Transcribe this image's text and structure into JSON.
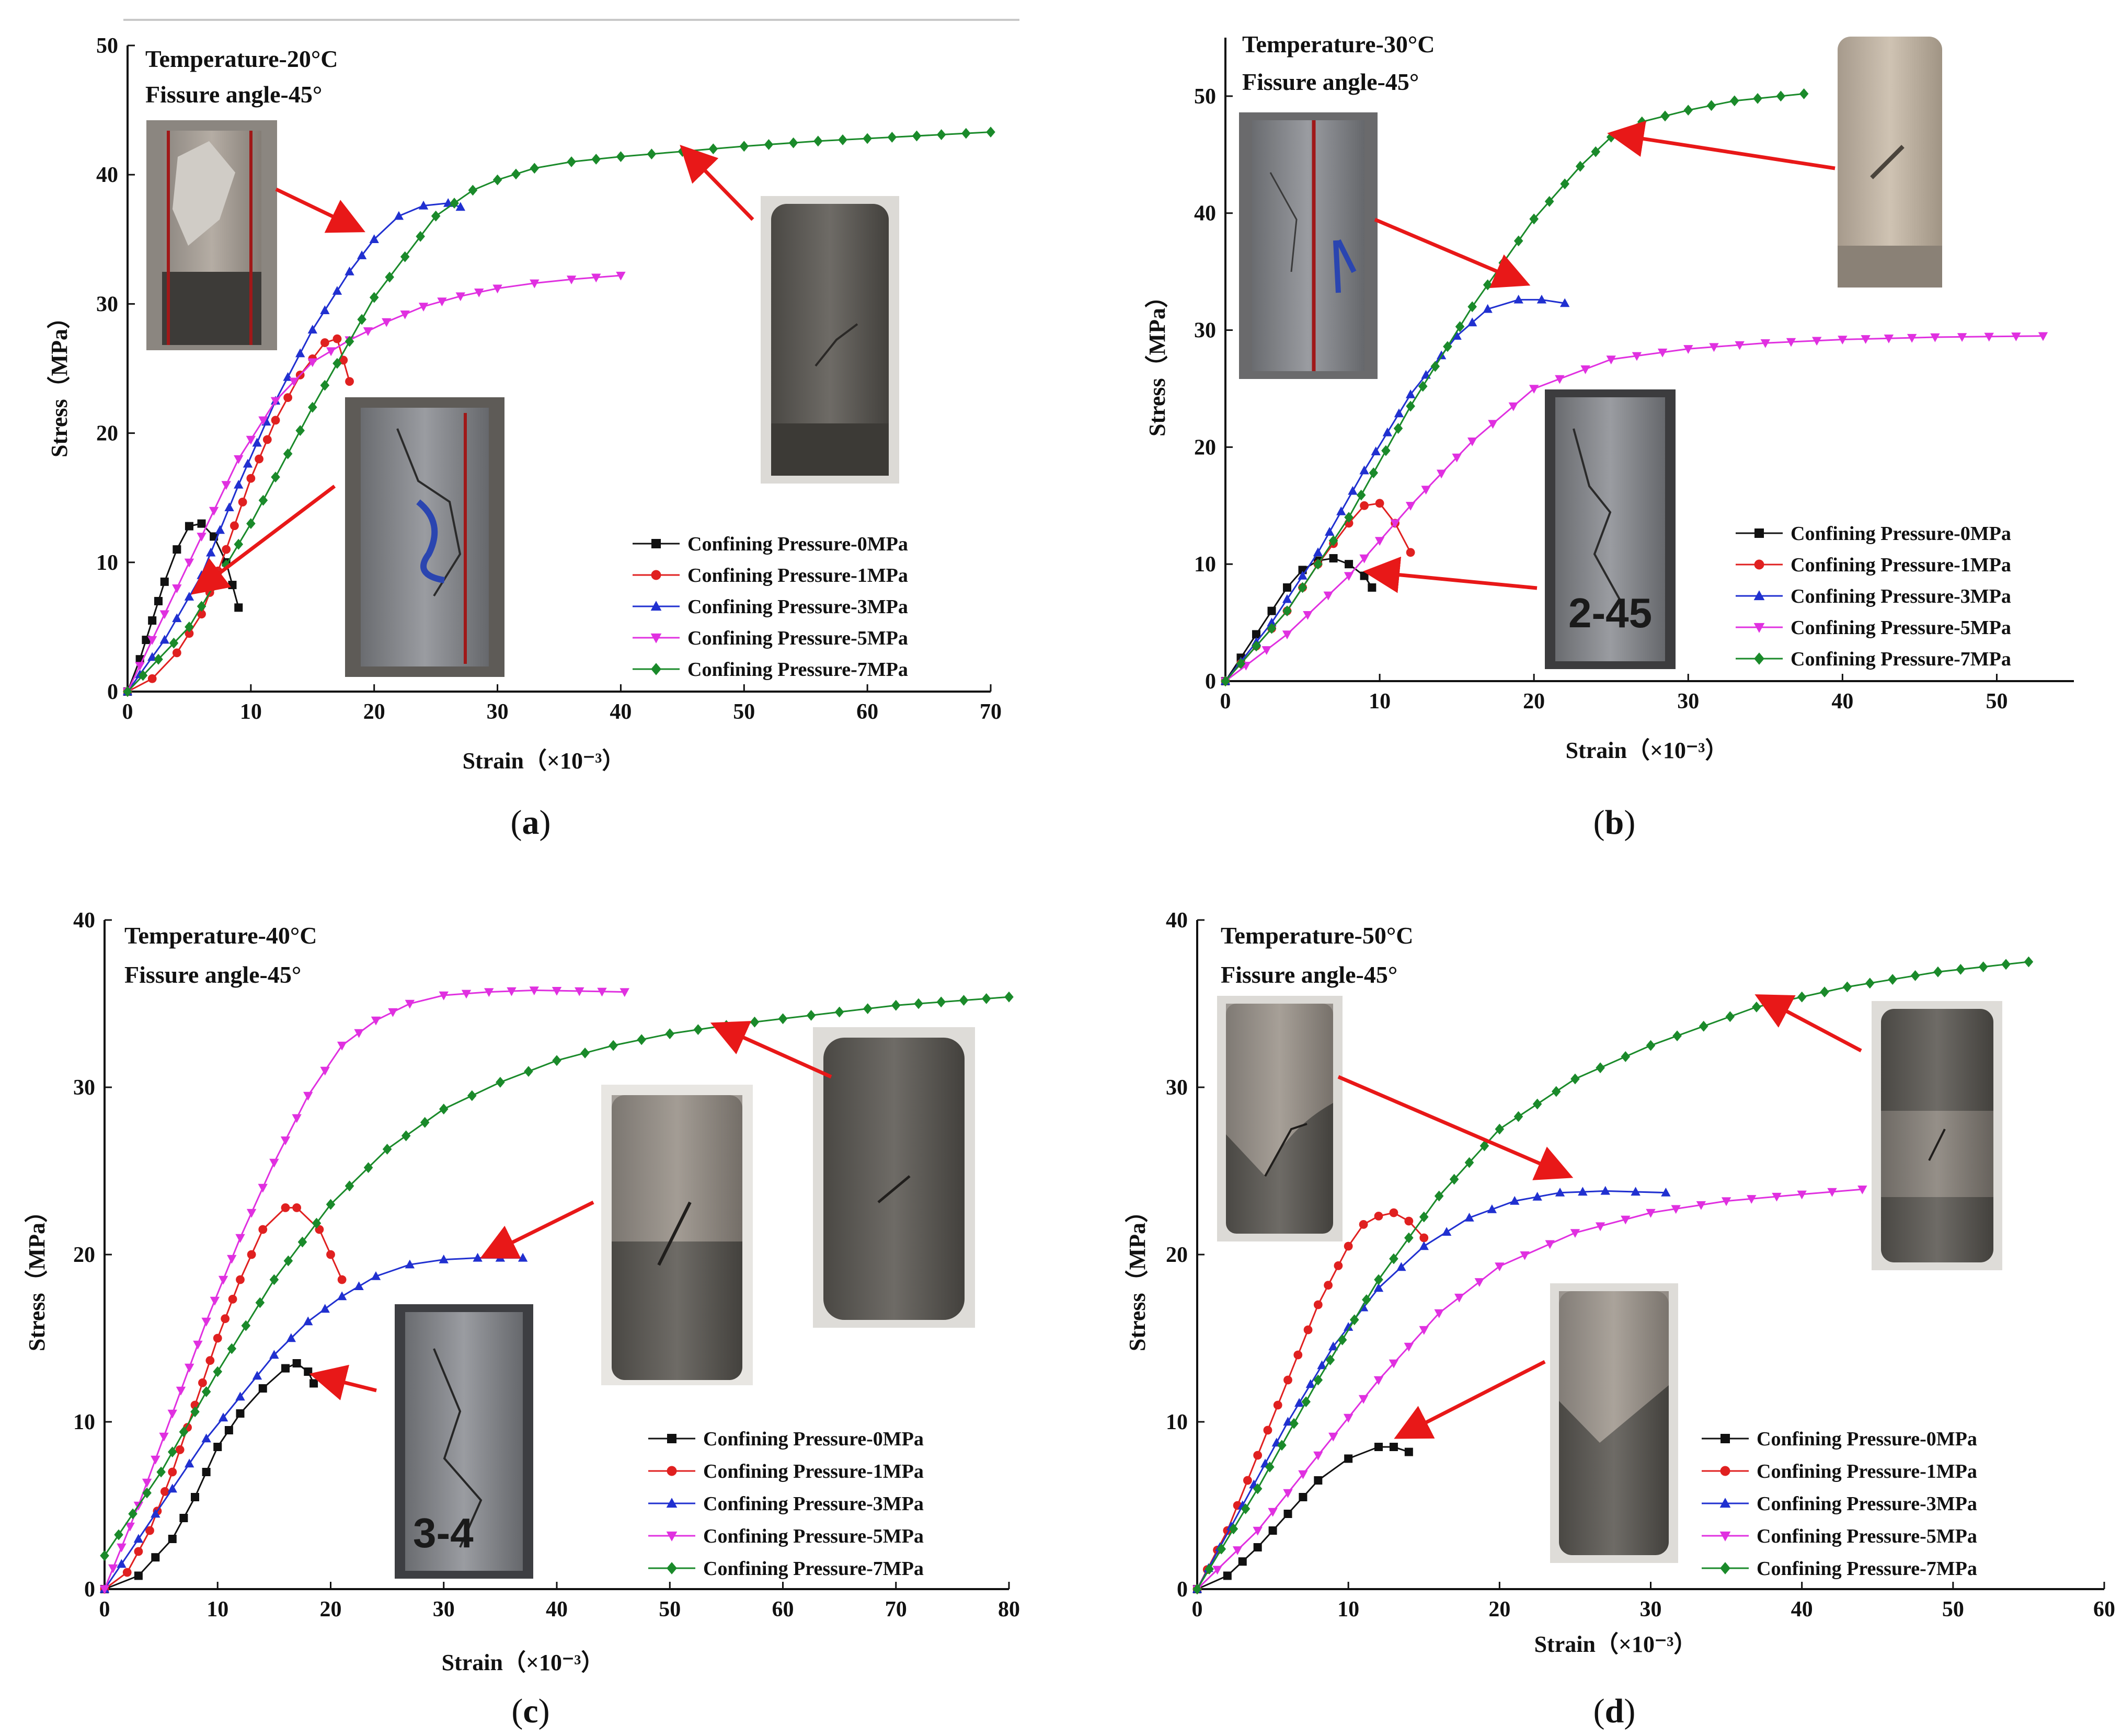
{
  "figure": {
    "caption_labels": [
      "a",
      "b",
      "c",
      "d"
    ],
    "pressure_colors": [
      "#111111",
      "#e02020",
      "#2030d0",
      "#e030e0",
      "#1a8a2a"
    ]
  },
  "chart_data": [
    {
      "type": "line",
      "panel": "a",
      "annotations": [
        "Temperature-20°C",
        "Fissure angle-45°"
      ],
      "xlabel": "Strain（×10⁻³）",
      "ylabel": "Stress（MPa）",
      "xlim": [
        0,
        70
      ],
      "ylim": [
        0,
        50
      ],
      "xticks": [
        0,
        10,
        20,
        30,
        40,
        50,
        60,
        70
      ],
      "yticks": [
        0,
        10,
        20,
        30,
        40,
        50
      ],
      "legend_position": "bottom-right",
      "series": [
        {
          "name": "Confining Pressure-0MPa",
          "x": [
            0,
            1,
            2,
            3,
            4,
            5,
            6,
            7,
            8,
            9
          ],
          "y": [
            0,
            2.5,
            5.5,
            8.5,
            11,
            12.8,
            13,
            12,
            10,
            6.5
          ]
        },
        {
          "name": "Confining Pressure-1MPa",
          "x": [
            0,
            2,
            4,
            6,
            8,
            10,
            12,
            14,
            16,
            17,
            18
          ],
          "y": [
            0,
            1,
            3,
            6,
            11,
            16.5,
            21,
            24.5,
            27,
            27.3,
            24
          ]
        },
        {
          "name": "Confining Pressure-3MPa",
          "x": [
            0,
            3,
            6,
            9,
            12,
            15,
            18,
            20,
            22,
            24,
            26,
            27
          ],
          "y": [
            0,
            4,
            9,
            16,
            22.5,
            28,
            32.5,
            35,
            36.8,
            37.6,
            37.8,
            37.5
          ]
        },
        {
          "name": "Confining Pressure-5MPa",
          "x": [
            0,
            3,
            6,
            9,
            12,
            15,
            18,
            21,
            24,
            27,
            30,
            33,
            36,
            40
          ],
          "y": [
            0,
            6,
            12,
            18,
            22.5,
            25.5,
            27.2,
            28.6,
            29.8,
            30.6,
            31.2,
            31.6,
            31.9,
            32.2
          ]
        },
        {
          "name": "Confining Pressure-7MPa",
          "x": [
            0,
            5,
            10,
            15,
            20,
            25,
            28,
            30,
            33,
            36,
            40,
            45,
            50,
            56,
            62,
            70
          ],
          "y": [
            0,
            5,
            13,
            22,
            30.5,
            36.8,
            38.8,
            39.6,
            40.5,
            41,
            41.4,
            41.8,
            42.2,
            42.6,
            42.9,
            43.3
          ]
        }
      ]
    },
    {
      "type": "line",
      "panel": "b",
      "annotations": [
        "Temperature-30°C",
        "Fissure angle-45°"
      ],
      "xlabel": "Strain（×10⁻³）",
      "ylabel": "Stress（MPa）",
      "xlim": [
        0,
        55
      ],
      "ylim": [
        0,
        55
      ],
      "xticks": [
        0,
        10,
        20,
        30,
        40,
        50
      ],
      "yticks": [
        0,
        10,
        20,
        30,
        40,
        50
      ],
      "legend_position": "bottom-right",
      "series": [
        {
          "name": "Confining Pressure-0MPa",
          "x": [
            0,
            1,
            2,
            3,
            4,
            5,
            6,
            7,
            8,
            9,
            9.5
          ],
          "y": [
            0,
            2,
            4,
            6,
            8,
            9.5,
            10.3,
            10.5,
            10,
            9,
            8
          ]
        },
        {
          "name": "Confining Pressure-1MPa",
          "x": [
            0,
            2,
            4,
            6,
            8,
            9,
            10,
            11,
            12
          ],
          "y": [
            0,
            3,
            6,
            10,
            13.5,
            15,
            15.2,
            13.5,
            11
          ]
        },
        {
          "name": "Confining Pressure-3MPa",
          "x": [
            0,
            3,
            6,
            9,
            12,
            15,
            17,
            19,
            20.5,
            22
          ],
          "y": [
            0,
            5,
            11,
            18,
            24.5,
            29.5,
            31.8,
            32.6,
            32.6,
            32.3
          ]
        },
        {
          "name": "Confining Pressure-5MPa",
          "x": [
            0,
            4,
            8,
            12,
            16,
            20,
            25,
            30,
            35,
            40,
            46,
            53
          ],
          "y": [
            0,
            4,
            9,
            15,
            20.5,
            25,
            27.5,
            28.4,
            28.9,
            29.2,
            29.4,
            29.5
          ]
        },
        {
          "name": "Confining Pressure-7MPa",
          "x": [
            0,
            4,
            8,
            12,
            16,
            20,
            23,
            25,
            27,
            30,
            33,
            37.5
          ],
          "y": [
            0,
            6,
            14,
            23.5,
            32,
            39.5,
            44,
            46.5,
            47.8,
            48.8,
            49.6,
            50.2
          ]
        }
      ]
    },
    {
      "type": "line",
      "panel": "c",
      "annotations": [
        "Temperature-40°C",
        "Fissure angle-45°"
      ],
      "xlabel": "Strain（×10⁻³）",
      "ylabel": "Stress（MPa）",
      "xlim": [
        0,
        80
      ],
      "ylim": [
        0,
        40
      ],
      "xticks": [
        0,
        10,
        20,
        30,
        40,
        50,
        60,
        70,
        80
      ],
      "yticks": [
        0,
        10,
        20,
        30,
        40
      ],
      "legend_position": "bottom-right",
      "series": [
        {
          "name": "Confining Pressure-0MPa",
          "x": [
            0,
            3,
            6,
            8,
            10,
            12,
            14,
            16,
            17,
            18,
            18.5
          ],
          "y": [
            0,
            0.8,
            3,
            5.5,
            8.5,
            10.5,
            12,
            13.2,
            13.5,
            13,
            12.3
          ]
        },
        {
          "name": "Confining Pressure-1MPa",
          "x": [
            0,
            2,
            4,
            6,
            8,
            10,
            12,
            14,
            16,
            17,
            19,
            21
          ],
          "y": [
            0,
            1,
            3.5,
            7,
            11,
            15,
            18.5,
            21.5,
            22.8,
            22.8,
            21.5,
            18.5
          ]
        },
        {
          "name": "Confining Pressure-3MPa",
          "x": [
            0,
            3,
            6,
            9,
            12,
            15,
            18,
            21,
            24,
            27,
            30,
            33,
            37
          ],
          "y": [
            0,
            3,
            6,
            9,
            11.5,
            14,
            16,
            17.5,
            18.7,
            19.4,
            19.7,
            19.8,
            19.8
          ]
        },
        {
          "name": "Confining Pressure-5MPa",
          "x": [
            0,
            3,
            6,
            9,
            12,
            15,
            18,
            21,
            24,
            27,
            30,
            34,
            38,
            46
          ],
          "y": [
            0,
            5,
            10.5,
            16,
            21,
            25.5,
            29.5,
            32.5,
            34,
            35,
            35.5,
            35.7,
            35.8,
            35.7
          ]
        },
        {
          "name": "Confining Pressure-7MPa",
          "x": [
            0,
            5,
            10,
            15,
            20,
            25,
            30,
            35,
            40,
            45,
            50,
            55,
            60,
            65,
            70,
            80
          ],
          "y": [
            2,
            7,
            13,
            18.5,
            23,
            26.3,
            28.7,
            30.3,
            31.6,
            32.5,
            33.2,
            33.7,
            34.1,
            34.5,
            34.9,
            35.4
          ]
        }
      ]
    },
    {
      "type": "line",
      "panel": "d",
      "annotations": [
        "Temperature-50°C",
        "Fissure angle-45°"
      ],
      "xlabel": "Strain（×10⁻³）",
      "ylabel": "Stress（MPa）",
      "xlim": [
        0,
        60
      ],
      "ylim": [
        0,
        40
      ],
      "xticks": [
        0,
        10,
        20,
        30,
        40,
        50,
        60
      ],
      "yticks": [
        0,
        10,
        20,
        30,
        40
      ],
      "legend_position": "bottom-right",
      "series": [
        {
          "name": "Confining Pressure-0MPa",
          "x": [
            0,
            2,
            4,
            6,
            8,
            10,
            12,
            13,
            14
          ],
          "y": [
            0,
            0.8,
            2.5,
            4.5,
            6.5,
            7.8,
            8.5,
            8.5,
            8.2
          ]
        },
        {
          "name": "Confining Pressure-1MPa",
          "x": [
            0,
            2,
            4,
            6,
            8,
            10,
            11,
            12,
            13,
            14,
            15
          ],
          "y": [
            0,
            3.5,
            8,
            12.5,
            17,
            20.5,
            21.8,
            22.3,
            22.5,
            22,
            21
          ]
        },
        {
          "name": "Confining Pressure-3MPa",
          "x": [
            0,
            3,
            6,
            9,
            12,
            15,
            18,
            21,
            24,
            27,
            31
          ],
          "y": [
            0,
            5,
            10,
            14.5,
            18,
            20.5,
            22.2,
            23.2,
            23.7,
            23.8,
            23.7
          ]
        },
        {
          "name": "Confining Pressure-5MPa",
          "x": [
            0,
            4,
            8,
            12,
            16,
            20,
            25,
            30,
            35,
            40,
            44
          ],
          "y": [
            0,
            3.5,
            8,
            12.5,
            16.5,
            19.3,
            21.3,
            22.5,
            23.2,
            23.6,
            23.9
          ]
        },
        {
          "name": "Confining Pressure-7MPa",
          "x": [
            0,
            4,
            8,
            12,
            16,
            20,
            25,
            30,
            37,
            43,
            49,
            55
          ],
          "y": [
            0,
            6,
            12.5,
            18.5,
            23.5,
            27.5,
            30.5,
            32.5,
            34.8,
            36,
            36.9,
            37.5
          ]
        }
      ]
    }
  ]
}
